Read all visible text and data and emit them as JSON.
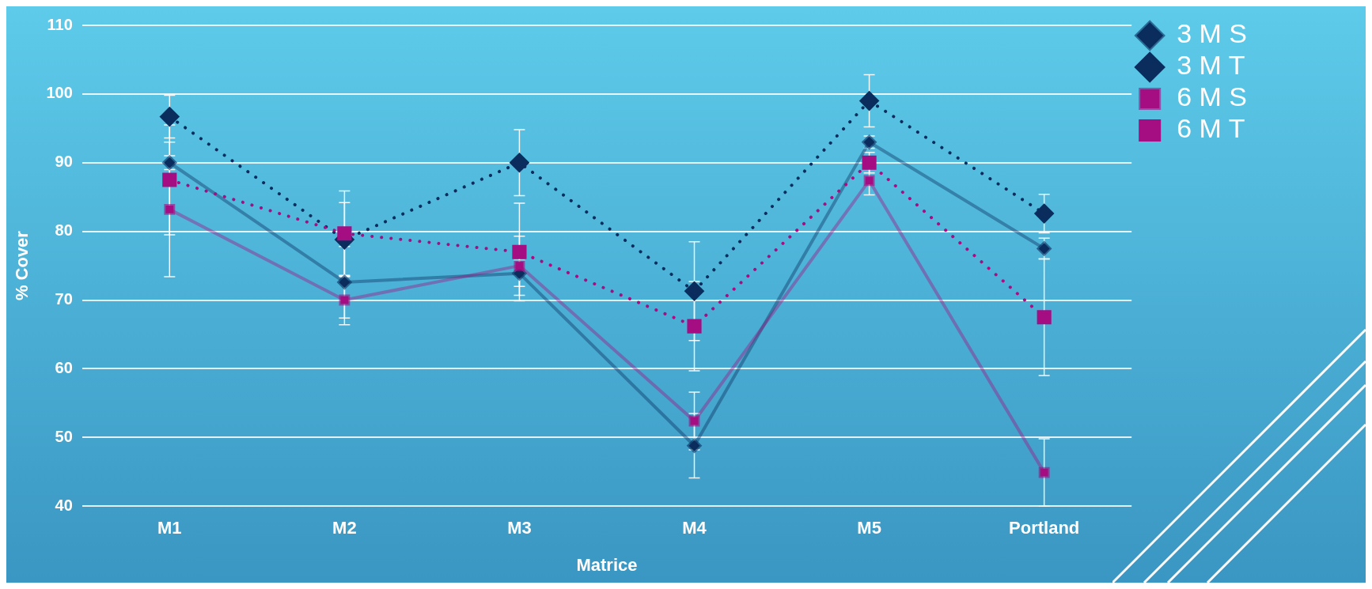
{
  "chart_data": {
    "type": "line",
    "xlabel": "Matrice",
    "ylabel": "% Cover",
    "categories": [
      "M1",
      "M2",
      "M3",
      "M4",
      "M5",
      "Portland"
    ],
    "ylim": [
      40,
      110
    ],
    "yticks": [
      40,
      50,
      60,
      70,
      80,
      90,
      100,
      110
    ],
    "grid": "y",
    "legend": "right",
    "series": [
      {
        "name": "3 M S",
        "color": "#0a2d5e",
        "marker": "diamond",
        "line_style": "solid",
        "values": [
          90.0,
          72.6,
          73.9,
          48.8,
          93.0,
          77.5
        ],
        "errors": [
          1.0,
          5.2,
          1.9,
          4.7,
          0.9,
          1.5
        ]
      },
      {
        "name": "3 M T",
        "color": "#0a2d5e",
        "marker": "diamond",
        "line_style": "dotted",
        "values": [
          96.7,
          78.8,
          90.0,
          71.3,
          99.0,
          82.6
        ],
        "errors": [
          3.1,
          5.4,
          4.8,
          7.2,
          3.8,
          2.8
        ]
      },
      {
        "name": "6 M S",
        "color": "#a50e82",
        "marker": "square",
        "line_style": "solid",
        "values": [
          83.2,
          70.0,
          75.0,
          52.4,
          87.4,
          44.9
        ],
        "errors": [
          9.8,
          3.6,
          4.3,
          4.2,
          2.1,
          4.9
        ]
      },
      {
        "name": "6 M T",
        "color": "#a50e82",
        "marker": "square",
        "line_style": "dotted",
        "values": [
          87.5,
          79.7,
          77.0,
          66.2,
          90.0,
          67.5
        ],
        "errors": [
          8.0,
          6.2,
          7.1,
          6.5,
          1.5,
          8.5
        ]
      }
    ]
  }
}
